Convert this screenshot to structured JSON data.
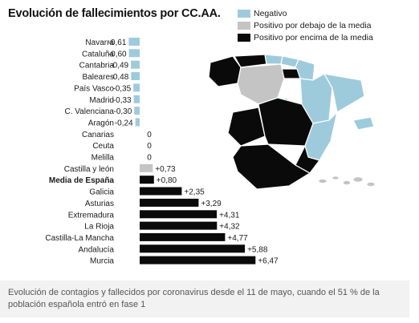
{
  "chart_data": {
    "type": "bar",
    "title": "Evolución de fallecimientos por CC.AA.",
    "orientation": "horizontal",
    "categories": [
      "Navarra",
      "Cataluña",
      "Cantabria",
      "Baleares",
      "País Vasco",
      "Madrid",
      "C. Valenciana",
      "Aragón",
      "Canarias",
      "Ceuta",
      "Melilla",
      "Castilla y león",
      "Media de España",
      "Galicia",
      "Asturias",
      "Extremadura",
      "La Rioja",
      "Castilla-La Mancha",
      "Andalucía",
      "Murcia"
    ],
    "values": [
      -0.61,
      -0.6,
      -0.49,
      -0.48,
      -0.35,
      -0.33,
      -0.3,
      -0.24,
      0,
      0,
      0,
      0.73,
      0.8,
      2.35,
      3.29,
      4.31,
      4.32,
      4.77,
      5.88,
      6.47
    ],
    "value_labels": [
      "-0,61",
      "-0,60",
      "-0,49",
      "-0,48",
      "-0,35",
      "-0,33",
      "-0,30",
      "-0,24",
      "0",
      "0",
      "0",
      "+0,73",
      "+0,80",
      "+2,35",
      "+3,29",
      "+4,31",
      "+4,32",
      "+4,77",
      "+5,88",
      "+6,47"
    ],
    "highlight_category": "Media de España",
    "legend": [
      {
        "label": "Negativo",
        "color": "#9ecbdc"
      },
      {
        "label": "Positivo por debajo de la media",
        "color": "#c4c4c4"
      },
      {
        "label": "Positivo por encima de la media",
        "color": "#0a0a0a"
      }
    ],
    "colors": {
      "negative": "#9ecbdc",
      "below_mean": "#c4c4c4",
      "above_mean": "#0a0a0a"
    },
    "legend_position": "top-right",
    "grid": false
  },
  "map": {
    "regions": [
      {
        "name": "Galicia",
        "class": "above_mean"
      },
      {
        "name": "Asturias",
        "class": "above_mean"
      },
      {
        "name": "Cantabria",
        "class": "negative"
      },
      {
        "name": "País Vasco",
        "class": "negative"
      },
      {
        "name": "Navarra",
        "class": "negative"
      },
      {
        "name": "La Rioja",
        "class": "above_mean"
      },
      {
        "name": "Aragón",
        "class": "negative"
      },
      {
        "name": "Cataluña",
        "class": "negative"
      },
      {
        "name": "Castilla y león",
        "class": "below_mean"
      },
      {
        "name": "Madrid",
        "class": "negative"
      },
      {
        "name": "Extremadura",
        "class": "above_mean"
      },
      {
        "name": "Castilla-La Mancha",
        "class": "above_mean"
      },
      {
        "name": "C. Valenciana",
        "class": "negative"
      },
      {
        "name": "Murcia",
        "class": "above_mean"
      },
      {
        "name": "Andalucía",
        "class": "above_mean"
      },
      {
        "name": "Baleares",
        "class": "negative"
      },
      {
        "name": "Canarias",
        "class": "below_mean"
      }
    ]
  },
  "caption": "Evolución de contagios y fallecidos por coronavirus desde el 11 de mayo, cuando el 51 % de la población española entró en fase 1"
}
